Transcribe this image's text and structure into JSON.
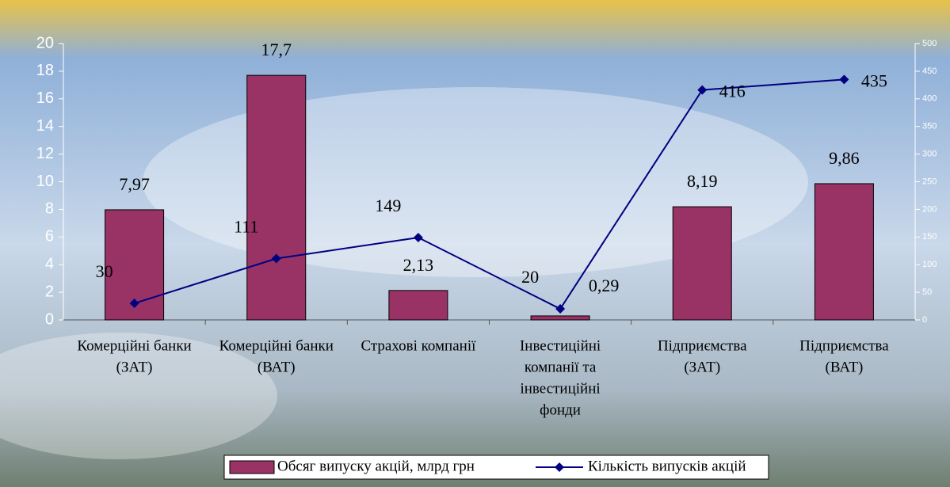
{
  "chart_data": {
    "type": "bar-line",
    "categories": [
      [
        "Комерційні банки",
        "(ЗАТ)"
      ],
      [
        "Комерційні банки",
        "(ВАТ)"
      ],
      [
        "Страхові компанії"
      ],
      [
        "Інвестиційні",
        "компанії та",
        "інвестиційні",
        "фонди"
      ],
      [
        "Підприємства",
        "(ЗАТ)"
      ],
      [
        "Підприємства",
        "(ВАТ)"
      ]
    ],
    "series": [
      {
        "name": "Обсяг випуску акцій, млрд грн",
        "type": "bar",
        "color": "#993366",
        "values": [
          7.97,
          17.7,
          2.13,
          0.29,
          8.19,
          9.86
        ],
        "value_labels": [
          "7,97",
          "17,7",
          "2,13",
          "0,29",
          "8,19",
          "9,86"
        ]
      },
      {
        "name": "Кількість випусків акцій",
        "type": "line",
        "color": "#000080",
        "axis": "y2",
        "values": [
          30,
          111,
          149,
          20,
          416,
          435
        ]
      }
    ],
    "ylim": [
      0,
      20
    ],
    "yticks": [
      0,
      2,
      4,
      6,
      8,
      10,
      12,
      14,
      16,
      18,
      20
    ],
    "y2lim": [
      0,
      500
    ],
    "y2ticks": [
      0,
      50,
      100,
      150,
      200,
      250,
      300,
      350,
      400,
      450,
      500
    ]
  }
}
